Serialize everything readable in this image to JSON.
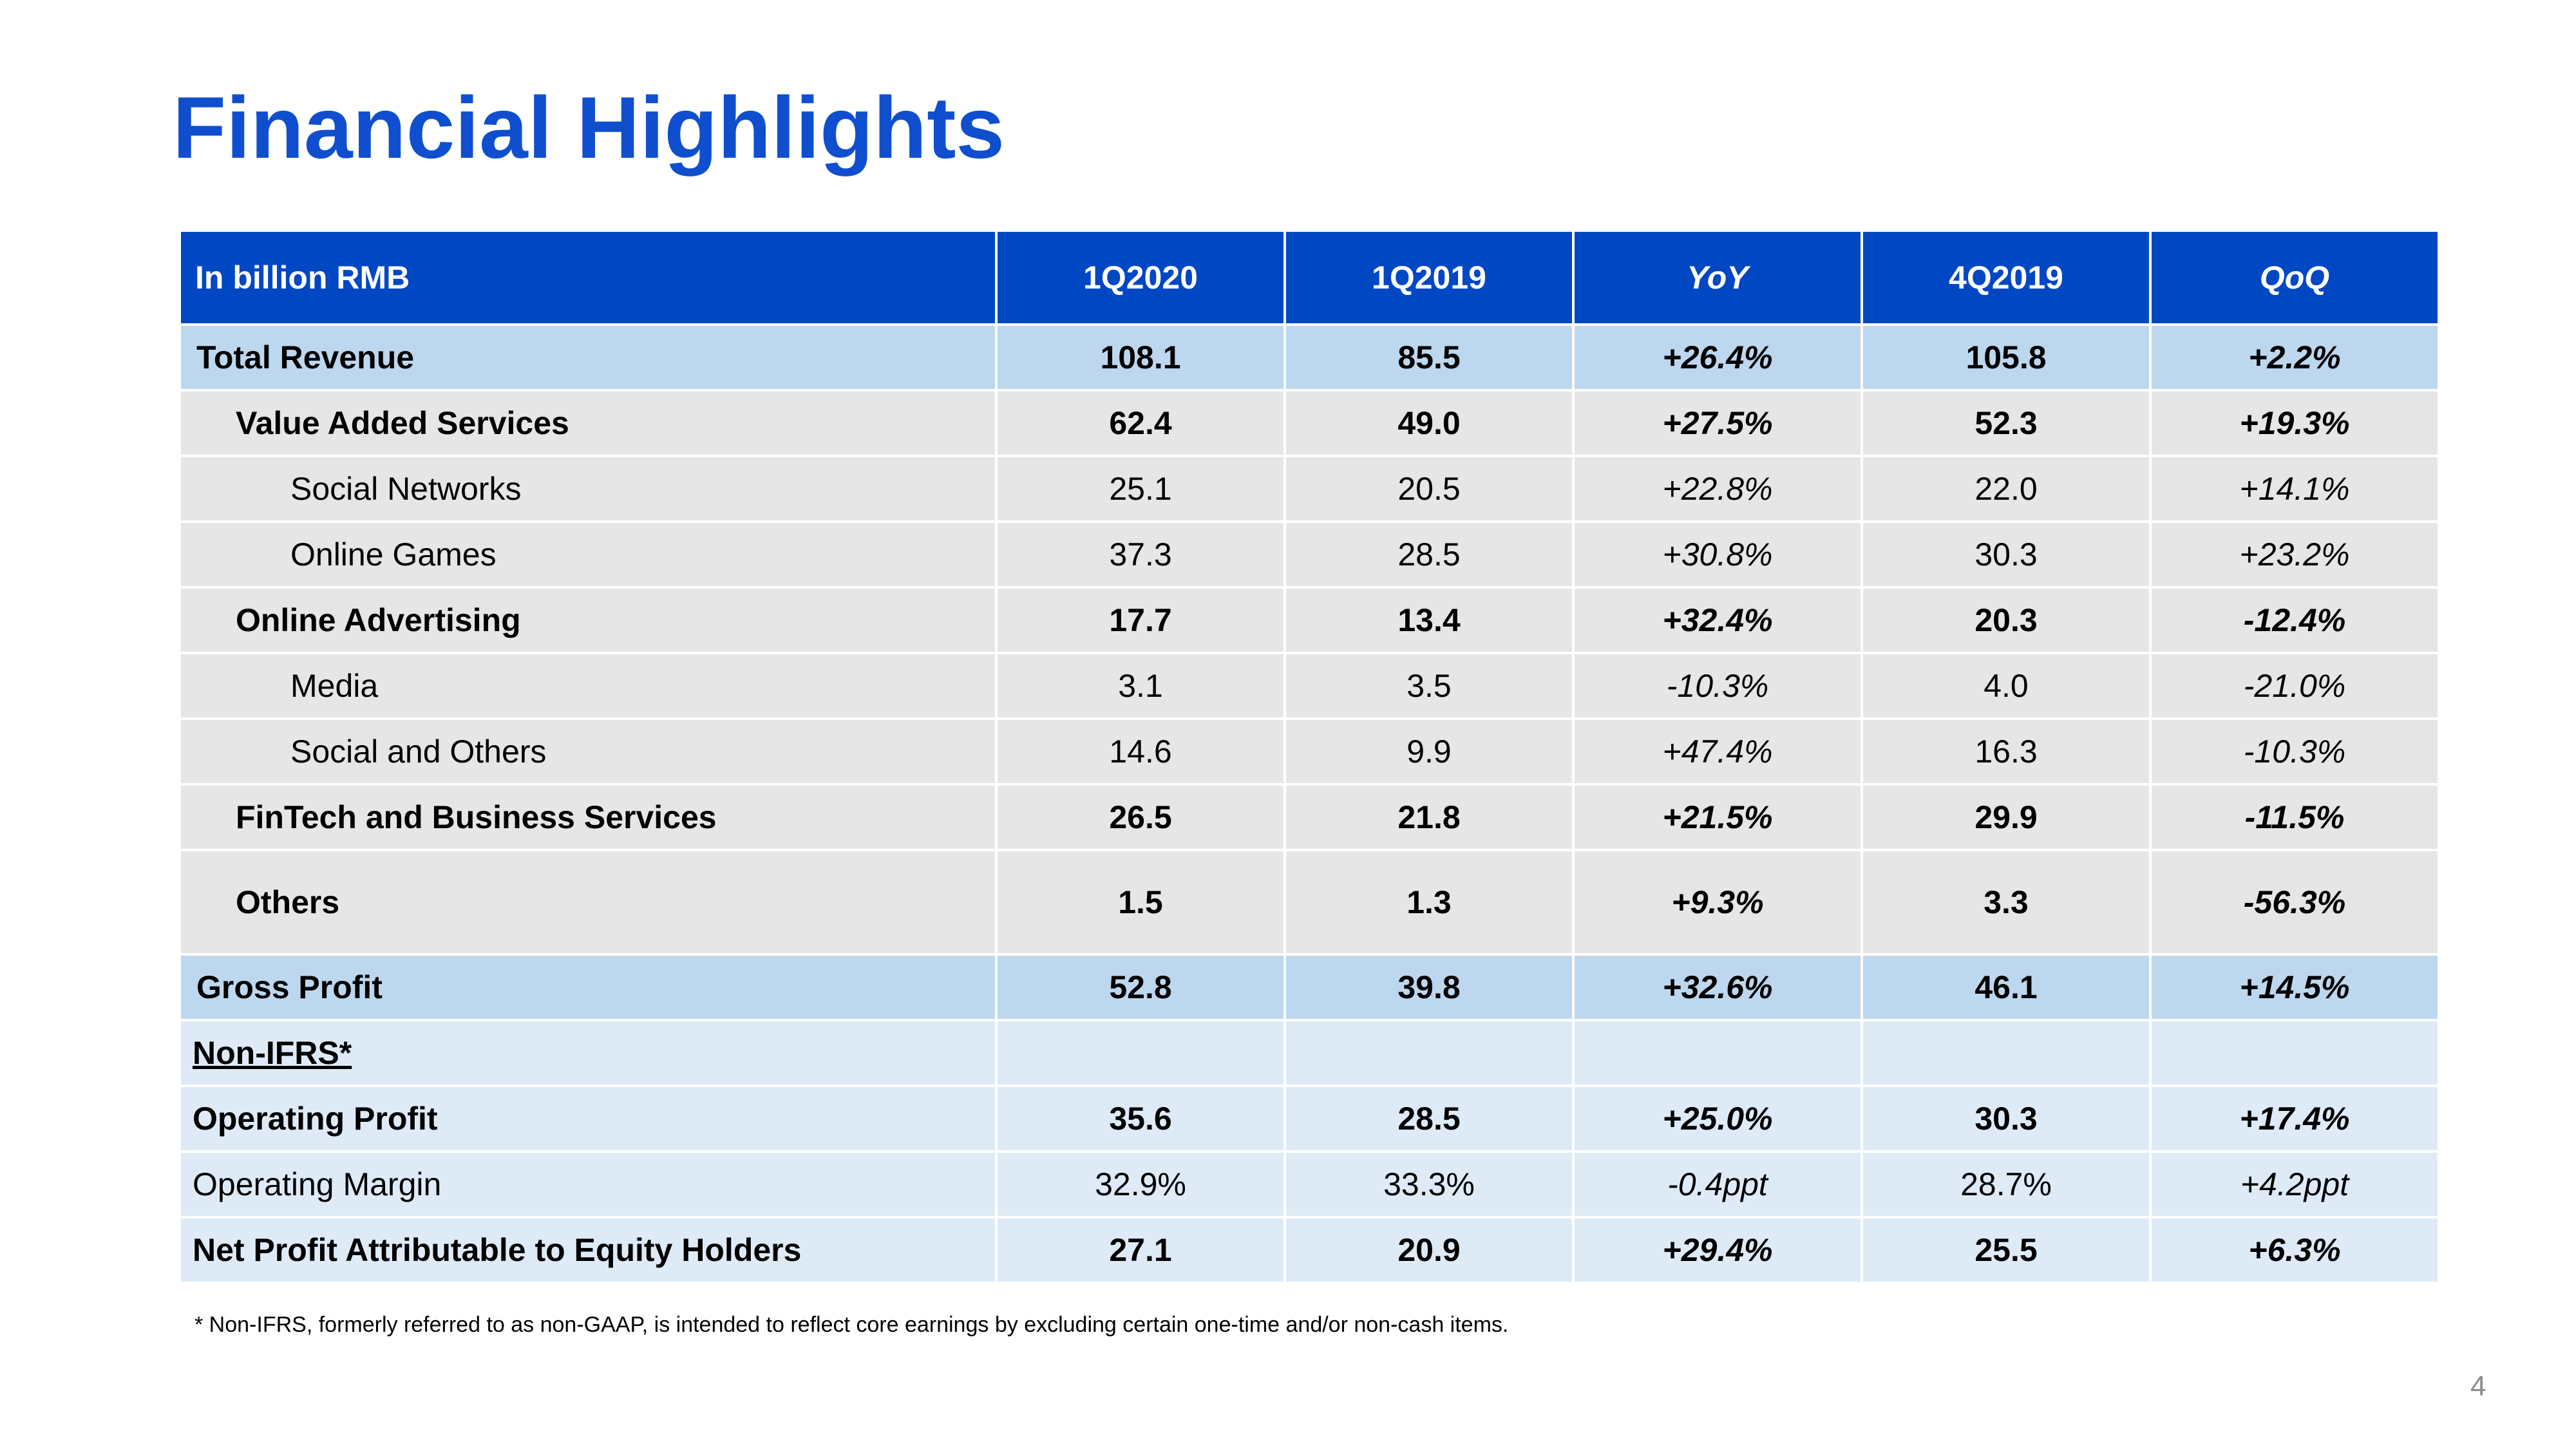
{
  "title": "Financial Highlights",
  "table": {
    "headers": [
      "In billion RMB",
      "1Q2020",
      "1Q2019",
      "YoY",
      "4Q2019",
      "QoQ"
    ],
    "rows": [
      {
        "label": "Total Revenue",
        "values": [
          "108.1",
          "85.5",
          "+26.4%",
          "105.8",
          "+2.2%"
        ]
      },
      {
        "label": "Value Added Services",
        "values": [
          "62.4",
          "49.0",
          "+27.5%",
          "52.3",
          "+19.3%"
        ]
      },
      {
        "label": "Social Networks",
        "values": [
          "25.1",
          "20.5",
          "+22.8%",
          "22.0",
          "+14.1%"
        ]
      },
      {
        "label": "Online Games",
        "values": [
          "37.3",
          "28.5",
          "+30.8%",
          "30.3",
          "+23.2%"
        ]
      },
      {
        "label": "Online Advertising",
        "values": [
          "17.7",
          "13.4",
          "+32.4%",
          "20.3",
          "-12.4%"
        ]
      },
      {
        "label": "Media",
        "values": [
          "3.1",
          "3.5",
          "-10.3%",
          "4.0",
          "-21.0%"
        ]
      },
      {
        "label": "Social and Others",
        "values": [
          "14.6",
          "9.9",
          "+47.4%",
          "16.3",
          "-10.3%"
        ]
      },
      {
        "label": "FinTech and Business Services",
        "values": [
          "26.5",
          "21.8",
          "+21.5%",
          "29.9",
          "-11.5%"
        ]
      },
      {
        "label": "Others",
        "values": [
          "1.5",
          "1.3",
          "+9.3%",
          "3.3",
          "-56.3%"
        ]
      },
      {
        "label": "Gross Profit",
        "values": [
          "52.8",
          "39.8",
          "+32.6%",
          "46.1",
          "+14.5%"
        ]
      },
      {
        "label": "Non-IFRS*",
        "values": [
          "",
          "",
          "",
          "",
          ""
        ]
      },
      {
        "label": "Operating Profit",
        "values": [
          "35.6",
          "28.5",
          "+25.0%",
          "30.3",
          "+17.4%"
        ]
      },
      {
        "label": "Operating Margin",
        "values": [
          "32.9%",
          "33.3%",
          "-0.4ppt",
          "28.7%",
          "+4.2ppt"
        ]
      },
      {
        "label": "Net Profit Attributable to Equity Holders",
        "values": [
          "27.1",
          "20.9",
          "+29.4%",
          "25.5",
          "+6.3%"
        ]
      }
    ]
  },
  "footnote": "* Non-IFRS, formerly referred to as non-GAAP, is intended to reflect core earnings by excluding certain one-time and/or non-cash items.",
  "page_number": "4",
  "colors": {
    "title": "#0f4fcf",
    "header_bg": "#0047c3",
    "total_row_bg": "#bdd7ee",
    "sub_row_bg": "#e7e6e6",
    "non_ifrs_bg": "#deebf7"
  }
}
